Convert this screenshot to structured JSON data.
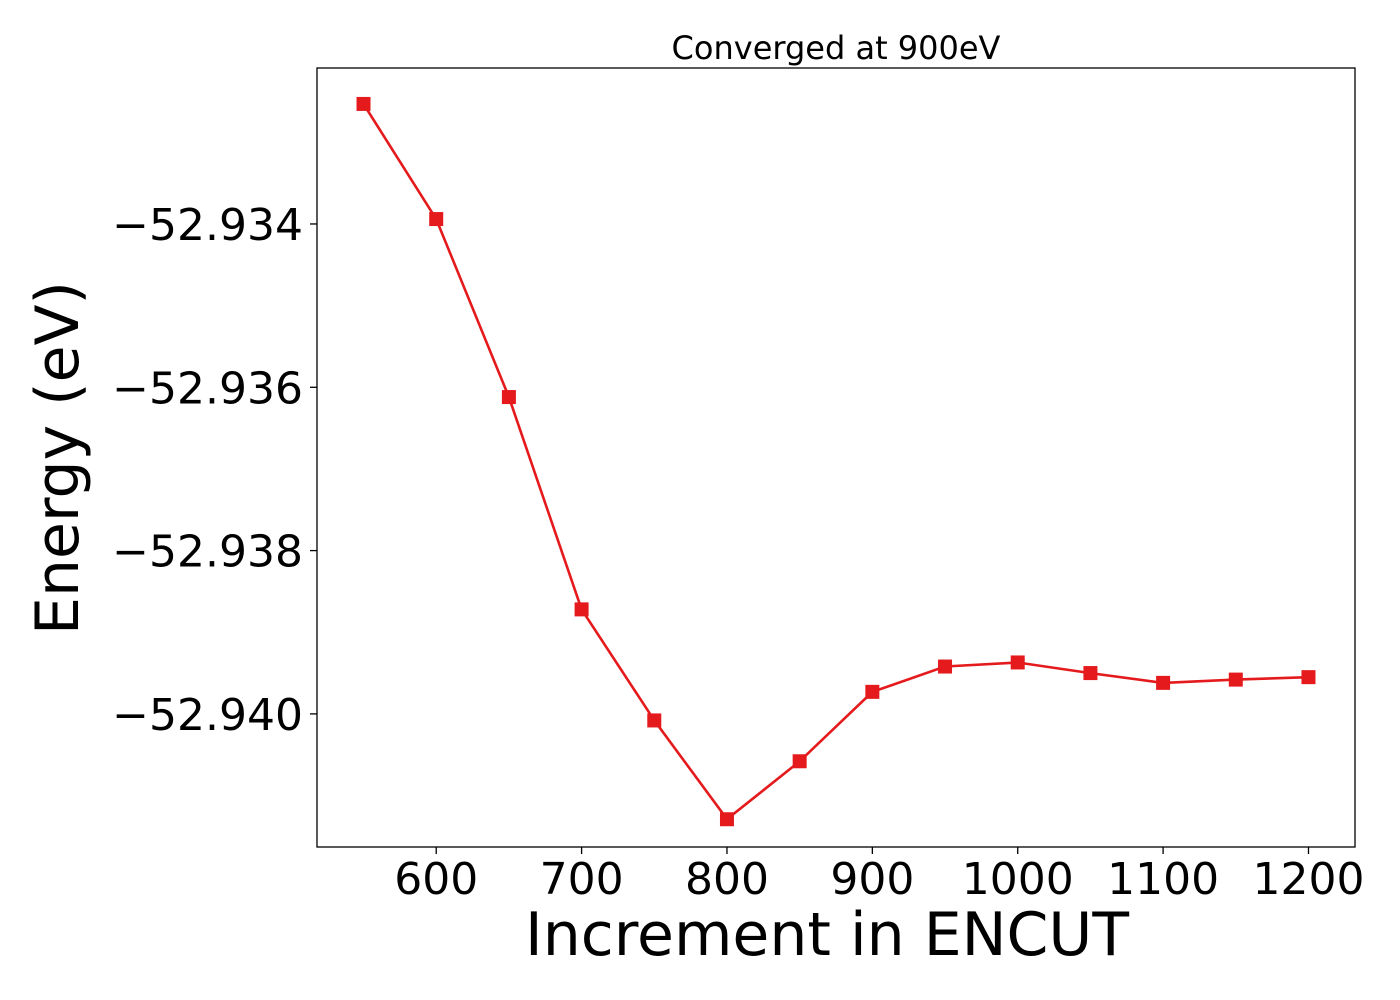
{
  "chart_data": {
    "type": "line",
    "title": "Converged at 900eV",
    "xlabel": "Increment in ENCUT",
    "ylabel": "Energy (eV)",
    "x": [
      550,
      600,
      650,
      700,
      750,
      800,
      850,
      900,
      950,
      1000,
      1050,
      1100,
      1150,
      1200
    ],
    "series": [
      {
        "color": "#e41a1c",
        "marker": "square",
        "values": [
          -52.93253,
          -52.93394,
          -52.93612,
          -52.93872,
          -52.94008,
          -52.94129,
          -52.94058,
          -52.93973,
          -52.93942,
          -52.93937,
          -52.9395,
          -52.93962,
          -52.93958,
          -52.93955
        ]
      }
    ],
    "xlim": [
      518,
      1232
    ],
    "ylim": [
      -52.94163,
      -52.93209
    ],
    "xticks": [
      600,
      700,
      800,
      900,
      1000,
      1100,
      1200
    ],
    "xtick_labels": [
      "600",
      "700",
      "800",
      "900",
      "1000",
      "1100",
      "1200"
    ],
    "yticks": [
      -52.934,
      -52.936,
      -52.938,
      -52.94
    ],
    "ytick_labels": [
      "−52.934",
      "−52.936",
      "−52.938",
      "−52.940"
    ],
    "grid": false,
    "legend": "none"
  }
}
